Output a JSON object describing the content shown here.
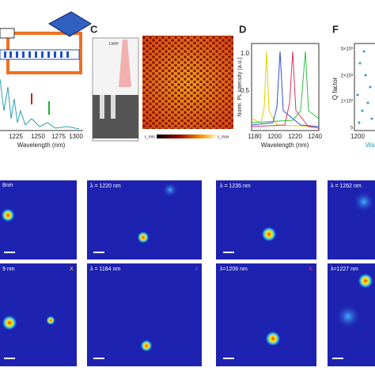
{
  "panel_a": {
    "spectrum": {
      "xlabel": "Wavelength (nm)",
      "xticks": [
        "1225",
        "1250",
        "1275",
        "1300"
      ]
    }
  },
  "panel_c": {
    "label": "C",
    "laser": "Laser",
    "colorbar_min": "ε_min",
    "colorbar_max": "ε_max"
  },
  "panel_d": {
    "label": "D",
    "ylabel": "Norm. PL intensity (a.u.)",
    "yticks": [
      "0.5",
      "1.0"
    ],
    "xlabel": "Wavelength (nm)",
    "xticks": [
      "1180",
      "1200",
      "1220",
      "1240"
    ]
  },
  "panel_f": {
    "label": "F",
    "ylabel": "Q factor",
    "yticks": [
      "3×10³",
      "2×10³",
      "1×10³",
      "0"
    ],
    "xticks": [
      "1200"
    ],
    "xlabel": "Wa"
  },
  "maps": {
    "row1": [
      "8nm",
      "λ = 1220 nm",
      "λ = 1235 nm",
      "λ = 1262 nm"
    ],
    "row2": [
      "9 nm",
      "λ = 1184 nm",
      "λ=1206 nm",
      "λ=1227 nm"
    ],
    "marks": [
      "X",
      "X",
      "X"
    ]
  }
}
